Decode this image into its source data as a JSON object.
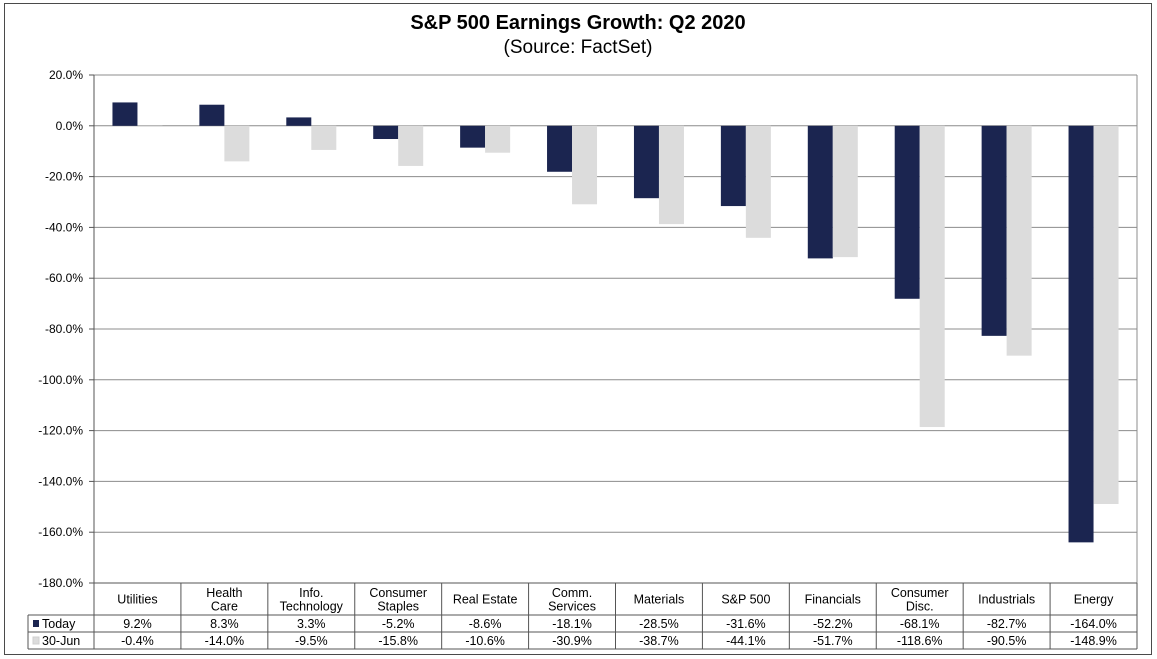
{
  "chart_data": {
    "type": "bar",
    "title": "S&P 500 Earnings Growth:  Q2 2020",
    "subtitle": "(Source: FactSet)",
    "ylim": [
      -180,
      20
    ],
    "yticks": [
      20,
      0,
      -20,
      -40,
      -60,
      -80,
      -100,
      -120,
      -140,
      -160,
      -180
    ],
    "ytick_labels": [
      "20.0%",
      "0.0%",
      "-20.0%",
      "-40.0%",
      "-60.0%",
      "-80.0%",
      "-100.0%",
      "-120.0%",
      "-140.0%",
      "-160.0%",
      "-180.0%"
    ],
    "grid": true,
    "categories": [
      [
        "Utilities"
      ],
      [
        "Health",
        "Care"
      ],
      [
        "Info.",
        "Technology"
      ],
      [
        "Consumer",
        "Staples"
      ],
      [
        "Real Estate"
      ],
      [
        "Comm.",
        "Services"
      ],
      [
        "Materials"
      ],
      [
        "S&P 500"
      ],
      [
        "Financials"
      ],
      [
        "Consumer",
        "Disc."
      ],
      [
        "Industrials"
      ],
      [
        "Energy"
      ]
    ],
    "series": [
      {
        "name": "Today",
        "color": "#1b2550",
        "values": [
          9.2,
          8.3,
          3.3,
          -5.2,
          -8.6,
          -18.1,
          -28.5,
          -31.6,
          -52.2,
          -68.1,
          -82.7,
          -164.0
        ],
        "labels": [
          "9.2%",
          "8.3%",
          "3.3%",
          "-5.2%",
          "-8.6%",
          "-18.1%",
          "-28.5%",
          "-31.6%",
          "-52.2%",
          "-68.1%",
          "-82.7%",
          "-164.0%"
        ]
      },
      {
        "name": "30-Jun",
        "color": "#dcdcdc",
        "values": [
          -0.4,
          -14.0,
          -9.5,
          -15.8,
          -10.6,
          -30.9,
          -38.7,
          -44.1,
          -51.7,
          -118.6,
          -90.5,
          -148.9
        ],
        "labels": [
          "-0.4%",
          "-14.0%",
          "-9.5%",
          "-15.8%",
          "-10.6%",
          "-30.9%",
          "-38.7%",
          "-44.1%",
          "-51.7%",
          "-118.6%",
          "-90.5%",
          "-148.9%"
        ]
      }
    ],
    "legend": "data-table"
  }
}
